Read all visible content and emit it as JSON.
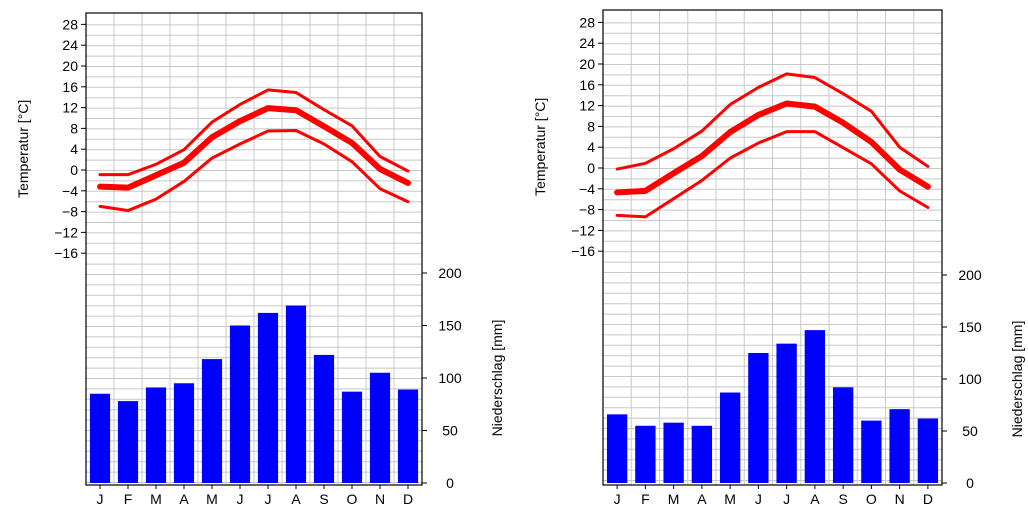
{
  "chart_data": [
    {
      "type": "line+bar",
      "categories": [
        "J",
        "F",
        "M",
        "A",
        "M",
        "J",
        "J",
        "A",
        "S",
        "O",
        "N",
        "D"
      ],
      "temperature_axis": {
        "label": "Temperatur [°C]",
        "ticks": [
          28,
          24,
          20,
          16,
          12,
          8,
          4,
          0,
          -4,
          -8,
          -12,
          -16
        ],
        "ylim": [
          -16,
          28
        ]
      },
      "precipitation_axis": {
        "label": "Niederschlag [mm]",
        "ticks": [
          200,
          150,
          100,
          50,
          0
        ],
        "ylim": [
          0,
          200
        ]
      },
      "series": [
        {
          "role": "temp_max",
          "color": "#ff0000",
          "values": [
            -0.9,
            -0.9,
            1.1,
            3.9,
            9.2,
            12.6,
            15.4,
            14.9,
            11.6,
            8.5,
            2.6,
            -0.2
          ]
        },
        {
          "role": "temp_mean",
          "color": "#ff0000",
          "values": [
            -3.2,
            -3.4,
            -1.0,
            1.4,
            6.3,
            9.4,
            11.9,
            11.5,
            8.4,
            5.2,
            0.2,
            -2.5
          ]
        },
        {
          "role": "temp_min",
          "color": "#ff0000",
          "values": [
            -7.0,
            -7.8,
            -5.6,
            -2.2,
            2.3,
            5.0,
            7.5,
            7.6,
            5.0,
            1.6,
            -3.6,
            -6.1
          ]
        },
        {
          "role": "precipitation",
          "color": "#0000ff",
          "values": [
            85,
            78,
            91,
            95,
            118,
            150,
            162,
            169,
            122,
            87,
            105,
            89
          ]
        }
      ],
      "grid": true
    },
    {
      "type": "line+bar",
      "categories": [
        "J",
        "F",
        "M",
        "A",
        "M",
        "J",
        "J",
        "A",
        "S",
        "O",
        "N",
        "D"
      ],
      "temperature_axis": {
        "label": "Temperatur [°C]",
        "ticks": [
          28,
          24,
          20,
          16,
          12,
          8,
          4,
          0,
          -4,
          -8,
          -12,
          -16
        ],
        "ylim": [
          -16,
          28
        ]
      },
      "precipitation_axis": {
        "label": "Niederschlag [mm]",
        "ticks": [
          200,
          150,
          100,
          50,
          0
        ],
        "ylim": [
          0,
          200
        ]
      },
      "series": [
        {
          "role": "temp_max",
          "color": "#ff0000",
          "values": [
            -0.2,
            0.9,
            3.7,
            7.1,
            12.2,
            15.5,
            18.1,
            17.4,
            14.3,
            10.9,
            4.0,
            0.3
          ]
        },
        {
          "role": "temp_mean",
          "color": "#ff0000",
          "values": [
            -4.7,
            -4.4,
            -1.0,
            2.3,
            6.9,
            10.2,
            12.4,
            11.8,
            8.7,
            5.0,
            -0.3,
            -3.6
          ]
        },
        {
          "role": "temp_min",
          "color": "#ff0000",
          "values": [
            -9.1,
            -9.4,
            -5.9,
            -2.4,
            1.9,
            4.8,
            7.0,
            7.0,
            3.9,
            0.8,
            -4.4,
            -7.6
          ]
        },
        {
          "role": "precipitation",
          "color": "#0000ff",
          "values": [
            66,
            55,
            58,
            55,
            87,
            125,
            134,
            147,
            92,
            60,
            71,
            62
          ]
        }
      ],
      "grid": true
    }
  ]
}
